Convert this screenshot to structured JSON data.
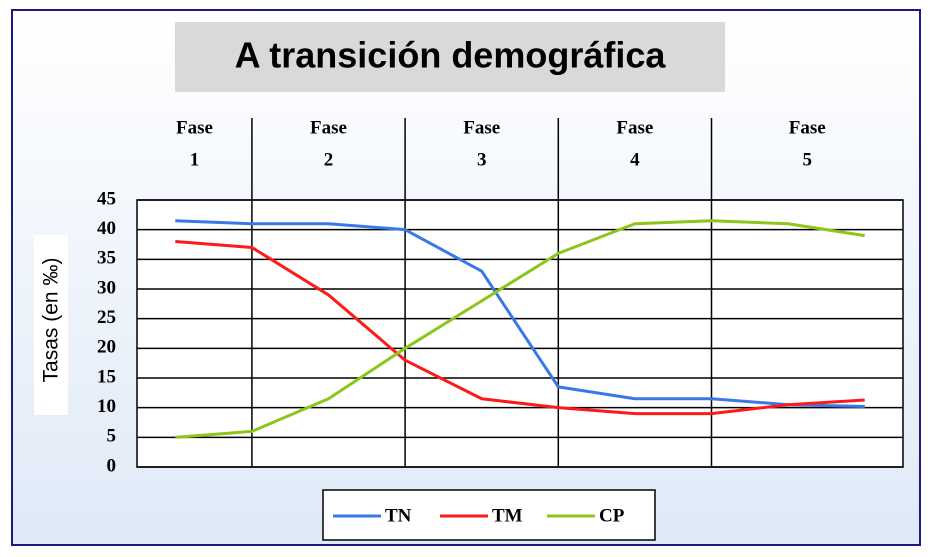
{
  "chart_data": {
    "type": "line",
    "title": "A transición demográfica",
    "y_label": "Tasas (en ‰)",
    "phases": [
      [
        "Fase",
        "1"
      ],
      [
        "Fase",
        "2"
      ],
      [
        "Fase",
        "3"
      ],
      [
        "Fase",
        "4"
      ],
      [
        "Fase",
        "5"
      ]
    ],
    "categories": [
      null,
      null,
      null,
      null,
      null,
      null,
      null,
      null,
      null,
      null
    ],
    "series": [
      {
        "name": "TN",
        "color": "#3b78e7",
        "values": [
          41.5,
          41,
          41,
          40,
          33,
          13.5,
          11.5,
          11.5,
          10.5,
          10.2
        ]
      },
      {
        "name": "TM",
        "color": "#ff1a1a",
        "values": [
          38,
          37,
          29,
          18,
          11.5,
          10,
          9,
          9,
          10.5,
          11.3
        ]
      },
      {
        "name": "CP",
        "color": "#8cc61a",
        "values": [
          5,
          6,
          11.5,
          20,
          28,
          36,
          41,
          41.5,
          41,
          39
        ]
      }
    ],
    "ylim": [
      0,
      45
    ],
    "yticks": [
      0,
      5,
      10,
      15,
      20,
      25,
      30,
      35,
      40,
      45
    ],
    "grid": true
  }
}
